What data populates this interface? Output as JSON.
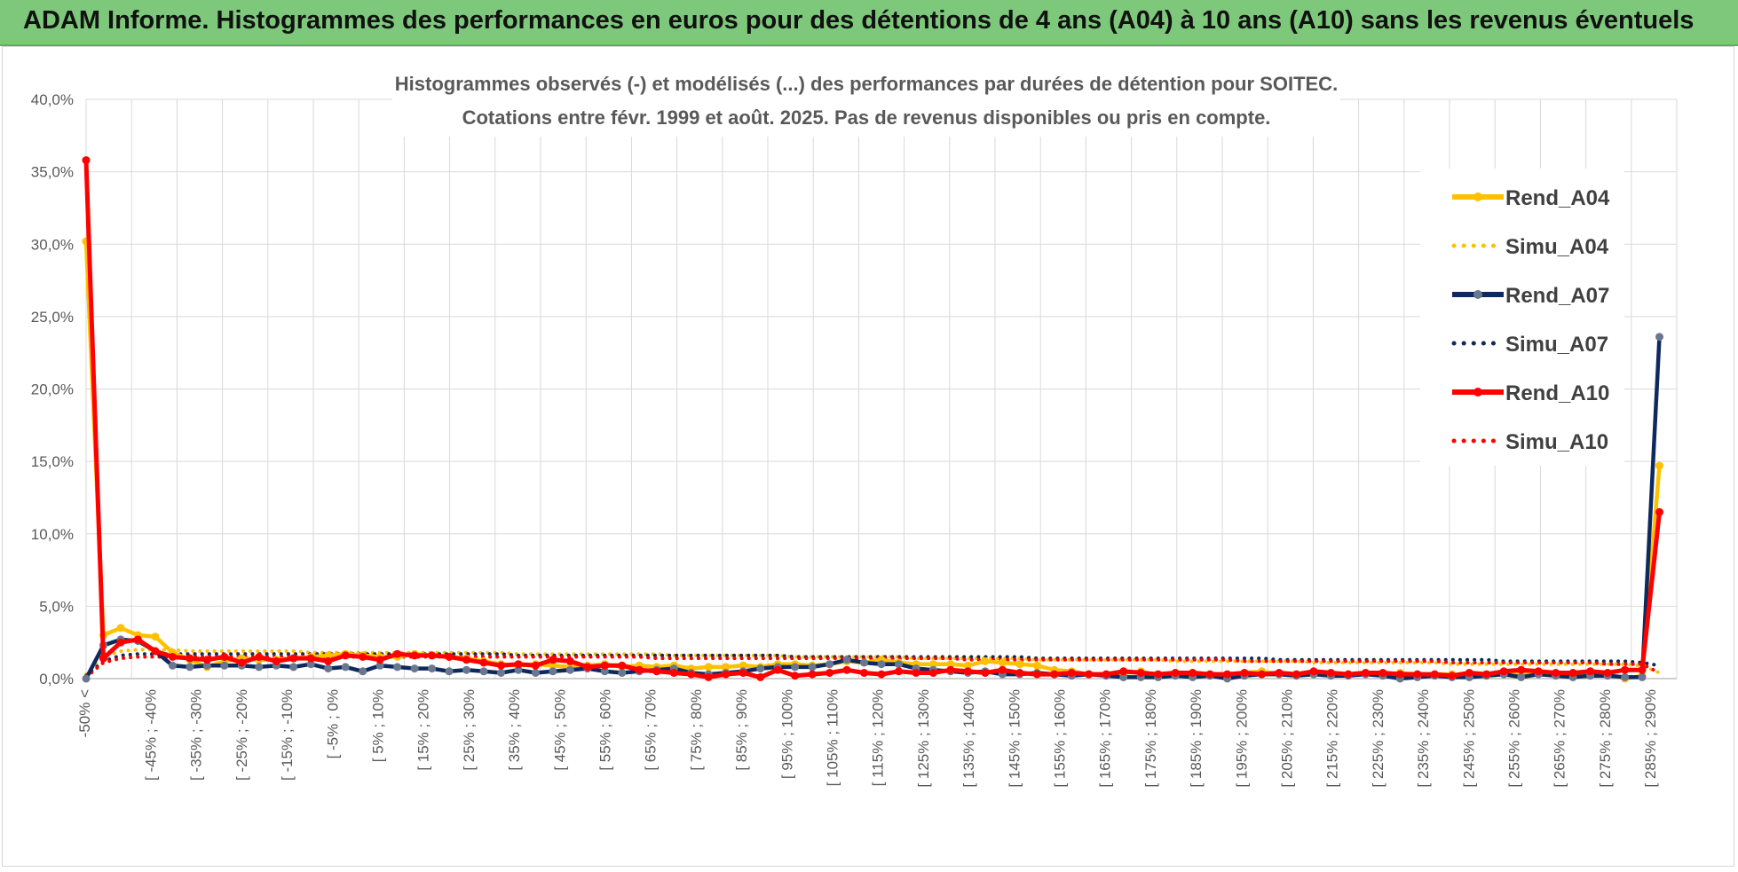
{
  "banner": {
    "title": "ADAM Informe. Histogrammes des performances en euros pour des détentions de 4 ans (A04) à 10 ans (A10) sans les revenus éventuels"
  },
  "colors": {
    "banner_bg": "#7dc87b",
    "A04": "#ffc000",
    "A07": "#0e2a5c",
    "A07_marker": "#6a7790",
    "A10": "#ff0000",
    "grid": "#d9d9d9"
  },
  "chart_data": {
    "type": "line",
    "title": "Histogrammes observés (-) et modélisés (...) des performances par durées de détention pour SOITEC.",
    "subtitle": "Cotations entre févr. 1999 et août. 2025. Pas de revenus disponibles ou pris en compte.",
    "xlabel": "",
    "ylabel": "",
    "ylim": [
      0,
      40
    ],
    "yticks": [
      "0,0%",
      "5,0%",
      "10,0%",
      "15,0%",
      "20,0%",
      "25,0%",
      "30,0%",
      "35,0%",
      "40,0%"
    ],
    "grid": true,
    "legend_position": "right",
    "x_labels": [
      "-50% <",
      "[ -45% ; -40%",
      "[ -35% ; -30%",
      "[ -25% ; -20%",
      "[ -15% ; -10%",
      "[ -5% ; 0%",
      "[ 5% ; 10%",
      "[ 15% ; 20%",
      "[ 25% ; 30%",
      "[ 35% ; 40%",
      "[ 45% ; 50%",
      "[ 55% ; 60%",
      "[ 65% ; 70%",
      "[ 75% ; 80%",
      "[ 85% ; 90%",
      "[ 95% ; 100%",
      "[ 105% ; 110%",
      "[ 115% ; 120%",
      "[ 125% ; 130%",
      "[ 135% ; 140%",
      "[ 145% ; 150%",
      "[ 155% ; 160%",
      "[ 165% ; 170%",
      "[ 175% ; 180%",
      "[ 185% ; 190%",
      "[ 195% ; 200%",
      "[ 205% ; 210%",
      "[ 215% ; 220%",
      "[ 225% ; 230%",
      "[ 235% ; 240%",
      "[ 245% ; 250%",
      "[ 255% ; 260%",
      "[ 265% ; 270%",
      "[ 275% ; 280%",
      "[ 285% ; 290%"
    ],
    "series": [
      {
        "name": "Rend_A04",
        "style": "solid",
        "color": "#ffc000",
        "values": [
          30.2,
          3.0,
          3.5,
          3.0,
          2.9,
          1.8,
          1.3,
          0.8,
          1.2,
          1.4,
          1.3,
          1.3,
          1.4,
          1.5,
          1.6,
          1.7,
          1.6,
          1.5,
          1.5,
          1.7,
          1.6,
          1.5,
          1.4,
          1.2,
          1.0,
          0.9,
          1.0,
          0.9,
          0.8,
          0.9,
          1.0,
          0.8,
          0.9,
          0.8,
          0.9,
          0.7,
          0.8,
          0.8,
          0.9,
          0.8,
          1.0,
          1.0,
          0.9,
          1.0,
          1.2,
          1.1,
          1.3,
          1.1,
          1.0,
          1.0,
          1.0,
          0.9,
          1.2,
          1.1,
          1.0,
          0.9,
          0.6,
          0.5,
          0.3,
          0.3,
          0.4,
          0.5,
          0.2,
          0.3,
          0.4,
          0.3,
          0.2,
          0.4,
          0.5,
          0.3,
          0.2,
          0.3,
          0.3,
          0.3,
          0.4,
          0.3,
          0.4,
          0.3,
          0.3,
          0.3,
          0.2,
          0.3,
          0.3,
          0.3,
          0.4,
          0.3,
          0.2,
          0.4,
          0.3,
          0.0,
          0.2,
          14.7
        ]
      },
      {
        "name": "Simu_A04",
        "style": "dotted",
        "color": "#ffc000",
        "values": [
          0.3,
          1.5,
          1.9,
          2.0,
          2.0,
          2.0,
          1.9,
          1.9,
          1.9,
          1.9,
          1.9,
          1.9,
          1.9,
          1.8,
          1.8,
          1.8,
          1.8,
          1.8,
          1.8,
          1.8,
          1.8,
          1.8,
          1.8,
          1.8,
          1.8,
          1.7,
          1.7,
          1.7,
          1.7,
          1.7,
          1.7,
          1.7,
          1.7,
          1.7,
          1.6,
          1.6,
          1.6,
          1.6,
          1.6,
          1.6,
          1.6,
          1.5,
          1.5,
          1.5,
          1.5,
          1.5,
          1.5,
          1.5,
          1.4,
          1.4,
          1.4,
          1.4,
          1.4,
          1.4,
          1.4,
          1.3,
          1.3,
          1.3,
          1.3,
          1.3,
          1.3,
          1.3,
          1.3,
          1.2,
          1.2,
          1.2,
          1.2,
          1.2,
          1.2,
          1.2,
          1.2,
          1.1,
          1.1,
          1.1,
          1.1,
          1.1,
          1.1,
          1.1,
          1.1,
          1.0,
          1.0,
          1.0,
          1.0,
          1.0,
          1.0,
          1.0,
          1.0,
          1.0,
          1.0,
          1.0,
          0.9,
          0.4
        ]
      },
      {
        "name": "Rend_A07",
        "style": "solid",
        "color": "#0e2a5c",
        "values": [
          0.0,
          2.3,
          2.7,
          2.6,
          1.9,
          0.9,
          0.8,
          0.9,
          0.9,
          0.9,
          0.8,
          0.9,
          0.8,
          1.0,
          0.7,
          0.8,
          0.5,
          0.9,
          0.8,
          0.7,
          0.7,
          0.5,
          0.6,
          0.5,
          0.4,
          0.6,
          0.4,
          0.5,
          0.6,
          0.7,
          0.5,
          0.4,
          0.5,
          0.6,
          0.7,
          0.4,
          0.3,
          0.4,
          0.5,
          0.7,
          0.8,
          0.8,
          0.8,
          1.0,
          1.3,
          1.1,
          1.0,
          1.0,
          0.7,
          0.6,
          0.5,
          0.4,
          0.5,
          0.3,
          0.3,
          0.4,
          0.3,
          0.2,
          0.3,
          0.2,
          0.1,
          0.1,
          0.1,
          0.2,
          0.1,
          0.2,
          0.0,
          0.2,
          0.3,
          0.3,
          0.2,
          0.3,
          0.2,
          0.2,
          0.3,
          0.2,
          0.0,
          0.1,
          0.2,
          0.1,
          0.1,
          0.2,
          0.3,
          0.1,
          0.3,
          0.2,
          0.1,
          0.2,
          0.2,
          0.1,
          0.1,
          23.6
        ]
      },
      {
        "name": "Simu_A07",
        "style": "dotted",
        "color": "#0e2a5c",
        "values": [
          0.2,
          1.2,
          1.6,
          1.7,
          1.7,
          1.7,
          1.7,
          1.7,
          1.7,
          1.7,
          1.7,
          1.7,
          1.7,
          1.7,
          1.7,
          1.7,
          1.7,
          1.7,
          1.7,
          1.7,
          1.7,
          1.7,
          1.7,
          1.7,
          1.7,
          1.6,
          1.6,
          1.6,
          1.6,
          1.6,
          1.6,
          1.6,
          1.6,
          1.6,
          1.6,
          1.6,
          1.6,
          1.6,
          1.6,
          1.6,
          1.6,
          1.5,
          1.5,
          1.5,
          1.5,
          1.5,
          1.5,
          1.5,
          1.5,
          1.5,
          1.5,
          1.5,
          1.5,
          1.5,
          1.5,
          1.4,
          1.4,
          1.4,
          1.4,
          1.4,
          1.4,
          1.4,
          1.4,
          1.4,
          1.4,
          1.4,
          1.4,
          1.4,
          1.4,
          1.3,
          1.3,
          1.3,
          1.3,
          1.3,
          1.3,
          1.3,
          1.3,
          1.3,
          1.3,
          1.3,
          1.3,
          1.3,
          1.2,
          1.2,
          1.2,
          1.2,
          1.2,
          1.2,
          1.2,
          1.2,
          1.1,
          0.9
        ]
      },
      {
        "name": "Rend_A10",
        "style": "solid",
        "color": "#ff0000",
        "values": [
          35.8,
          1.4,
          2.5,
          2.7,
          1.9,
          1.5,
          1.4,
          1.3,
          1.5,
          1.1,
          1.5,
          1.2,
          1.4,
          1.4,
          1.2,
          1.6,
          1.5,
          1.3,
          1.7,
          1.6,
          1.6,
          1.5,
          1.3,
          1.1,
          0.9,
          1.0,
          0.9,
          1.3,
          1.2,
          0.8,
          0.9,
          0.9,
          0.6,
          0.5,
          0.4,
          0.3,
          0.1,
          0.3,
          0.4,
          0.1,
          0.6,
          0.2,
          0.3,
          0.4,
          0.6,
          0.4,
          0.3,
          0.5,
          0.4,
          0.4,
          0.6,
          0.5,
          0.4,
          0.6,
          0.4,
          0.3,
          0.3,
          0.4,
          0.3,
          0.3,
          0.5,
          0.4,
          0.3,
          0.4,
          0.4,
          0.3,
          0.3,
          0.4,
          0.3,
          0.4,
          0.3,
          0.5,
          0.4,
          0.3,
          0.4,
          0.4,
          0.3,
          0.3,
          0.3,
          0.2,
          0.4,
          0.3,
          0.5,
          0.6,
          0.5,
          0.4,
          0.4,
          0.5,
          0.4,
          0.6,
          0.6,
          11.5
        ]
      },
      {
        "name": "Simu_A10",
        "style": "dotted",
        "color": "#ff0000",
        "values": [
          0.1,
          1.1,
          1.4,
          1.5,
          1.5,
          1.5,
          1.5,
          1.5,
          1.5,
          1.5,
          1.5,
          1.5,
          1.5,
          1.5,
          1.5,
          1.5,
          1.5,
          1.5,
          1.5,
          1.5,
          1.5,
          1.5,
          1.5,
          1.5,
          1.5,
          1.5,
          1.5,
          1.5,
          1.5,
          1.5,
          1.5,
          1.5,
          1.5,
          1.4,
          1.4,
          1.4,
          1.4,
          1.4,
          1.4,
          1.4,
          1.4,
          1.4,
          1.4,
          1.4,
          1.4,
          1.4,
          1.4,
          1.4,
          1.4,
          1.4,
          1.4,
          1.3,
          1.3,
          1.3,
          1.3,
          1.3,
          1.3,
          1.3,
          1.3,
          1.3,
          1.3,
          1.3,
          1.3,
          1.3,
          1.3,
          1.3,
          1.3,
          1.2,
          1.2,
          1.2,
          1.2,
          1.2,
          1.2,
          1.2,
          1.2,
          1.2,
          1.2,
          1.2,
          1.2,
          1.1,
          1.1,
          1.1,
          1.1,
          1.1,
          1.1,
          1.1,
          1.1,
          1.1,
          1.0,
          1.0,
          1.0,
          0.4
        ]
      }
    ]
  }
}
